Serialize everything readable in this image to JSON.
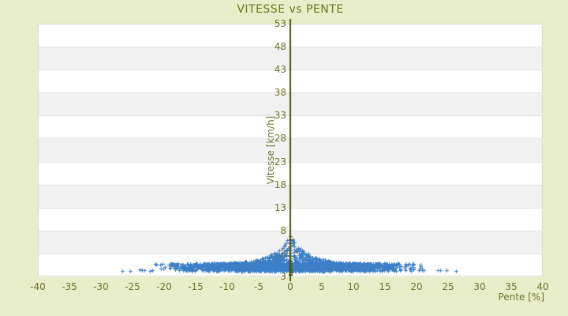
{
  "title": "VITESSE vs PENTE",
  "chart_data": {
    "type": "scatter",
    "title": "VITESSE vs PENTE",
    "xlabel": "Pente [%]",
    "ylabel": "Vitesse [km/h]",
    "x_axis": {
      "min": -40,
      "max": 40,
      "tick_step": 5,
      "ticks": [
        -40,
        -35,
        -30,
        -25,
        -20,
        -15,
        -10,
        -5,
        0,
        5,
        10,
        15,
        20,
        25,
        30,
        35,
        40
      ]
    },
    "y_axis": {
      "ticks": [
        53,
        48,
        43,
        38,
        33,
        28,
        23,
        18,
        13,
        8,
        3
      ],
      "min_label": "3"
    },
    "grid": "horizontal-bands-alternating",
    "legend": "none",
    "colors": {
      "background": "#e8edca",
      "band_light": "#ffffff",
      "band_dark": "#f2f2f2",
      "gridline": "#e2e2e2",
      "plot_border": "#d9d9cf",
      "axis_line": "#474f0c",
      "labels": "#71752e",
      "title": "#667d1c",
      "points_blue": "#3d7fc7",
      "points_olive": "#4a520f"
    },
    "series": [
      {
        "name": "vitesse-vs-pente-points",
        "marker": "cross",
        "color": "#3d7fc7",
        "summary": "dense cloud of GPS track points; pente from -27% to +27%; vitesse hugs 4-6 km/h with envelope rising sharply near pente 0 up to ~11-12 km/h; dense band |pente|<19, sparse isolated points beyond",
        "cloud_model": {
          "n_points": 2800,
          "pente_sigma": 8.8,
          "pente_range": [
            -21.5,
            21.5
          ],
          "right_thin_from": 17.5,
          "right_thin_keep": 0.35,
          "left_thin_from": -19.0,
          "left_thin_keep": 0.6,
          "zero_gap_halfwidth": 0.4,
          "zero_gap_skip_prob": 0.8,
          "core_fraction": 0.72,
          "core_v_min": 4.05,
          "core_v_span": 1.55,
          "core_v_jitter": 0.35,
          "tail_v_base": 5.6,
          "envelope_base": 5.8,
          "envelope_amp": 6.0,
          "envelope_decay": 2.8,
          "tail_pow": 2.0
        },
        "outliers": [
          [
            -26.6,
            4.25
          ],
          [
            -25.4,
            4.2
          ],
          [
            -23.9,
            4.55
          ],
          [
            -23.5,
            4.35
          ],
          [
            -23.1,
            4.3
          ],
          [
            -22.2,
            4.25
          ],
          [
            -21.9,
            4.4
          ],
          [
            18.9,
            4.7
          ],
          [
            19.5,
            4.5
          ],
          [
            20.4,
            4.35
          ],
          [
            20.9,
            4.3
          ],
          [
            21.1,
            4.45
          ],
          [
            23.4,
            4.4
          ],
          [
            23.7,
            4.3
          ],
          [
            24.7,
            4.35
          ],
          [
            26.3,
            4.25
          ]
        ]
      },
      {
        "name": "zero-pente-stack",
        "marker": "cross",
        "color": "#4a520f",
        "summary": "column of points at pente = 0 drawn on the vertical axis line",
        "points_v": [
          3.3,
          3.55,
          3.8,
          4.05,
          4.3,
          4.6,
          4.9,
          5.25,
          5.6,
          6.0,
          6.45,
          6.95,
          7.5,
          8.1,
          8.75,
          9.45,
          10.2,
          11.0,
          11.8
        ]
      }
    ]
  }
}
